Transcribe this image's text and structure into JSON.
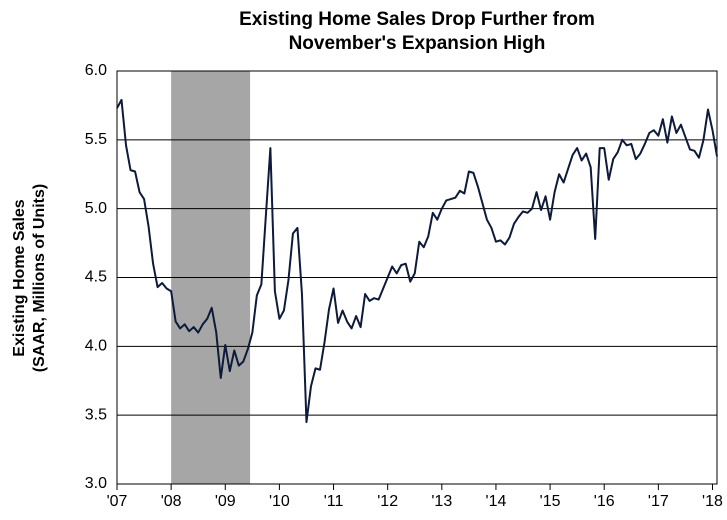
{
  "chart_data": {
    "type": "line",
    "title": [
      "Existing Home Sales Drop Further from",
      "November's Expansion High"
    ],
    "y_label": [
      "Existing Home Sales",
      "(SAAR, Millions of Units)"
    ],
    "categories": [
      "'07",
      null,
      null,
      null,
      null,
      null,
      null,
      null,
      null,
      null,
      null,
      null,
      "'08",
      null,
      null,
      null,
      null,
      null,
      null,
      null,
      null,
      null,
      null,
      null,
      "'09",
      null,
      null,
      null,
      null,
      null,
      null,
      null,
      null,
      null,
      null,
      null,
      "'10",
      null,
      null,
      null,
      null,
      null,
      null,
      null,
      null,
      null,
      null,
      null,
      "'11",
      null,
      null,
      null,
      null,
      null,
      null,
      null,
      null,
      null,
      null,
      null,
      "'12",
      null,
      null,
      null,
      null,
      null,
      null,
      null,
      null,
      null,
      null,
      null,
      "'13",
      null,
      null,
      null,
      null,
      null,
      null,
      null,
      null,
      null,
      null,
      null,
      "'14",
      null,
      null,
      null,
      null,
      null,
      null,
      null,
      null,
      null,
      null,
      null,
      "'15",
      null,
      null,
      null,
      null,
      null,
      null,
      null,
      null,
      null,
      null,
      null,
      "'16",
      null,
      null,
      null,
      null,
      null,
      null,
      null,
      null,
      null,
      null,
      null,
      "'17",
      null,
      null,
      null,
      null,
      null,
      null,
      null,
      null,
      null,
      null,
      null,
      "'18",
      null
    ],
    "series": [
      {
        "name": "Existing Home Sales",
        "color": "#0d1a3a",
        "values": [
          5.73,
          5.79,
          5.46,
          5.28,
          5.27,
          5.12,
          5.07,
          4.87,
          4.6,
          4.43,
          4.46,
          4.42,
          4.4,
          4.18,
          4.13,
          4.16,
          4.11,
          4.14,
          4.1,
          4.16,
          4.2,
          4.28,
          4.1,
          3.77,
          4.01,
          3.82,
          3.97,
          3.86,
          3.89,
          3.98,
          4.1,
          4.37,
          4.45,
          4.95,
          5.44,
          4.4,
          4.2,
          4.26,
          4.48,
          4.82,
          4.86,
          4.38,
          3.45,
          3.71,
          3.84,
          3.83,
          4.03,
          4.27,
          4.42,
          4.17,
          4.26,
          4.18,
          4.13,
          4.22,
          4.14,
          4.38,
          4.33,
          4.35,
          4.34,
          4.42,
          4.5,
          4.58,
          4.53,
          4.59,
          4.6,
          4.47,
          4.53,
          4.76,
          4.72,
          4.8,
          4.97,
          4.92,
          5.0,
          5.06,
          5.07,
          5.08,
          5.13,
          5.11,
          5.27,
          5.26,
          5.16,
          5.04,
          4.92,
          4.86,
          4.76,
          4.77,
          4.74,
          4.79,
          4.89,
          4.94,
          4.98,
          4.97,
          5.0,
          5.12,
          4.99,
          5.09,
          4.92,
          5.12,
          5.25,
          5.19,
          5.29,
          5.39,
          5.44,
          5.35,
          5.4,
          5.3,
          4.78,
          5.44,
          5.44,
          5.21,
          5.36,
          5.41,
          5.5,
          5.46,
          5.47,
          5.36,
          5.4,
          5.47,
          5.55,
          5.57,
          5.53,
          5.65,
          5.48,
          5.67,
          5.55,
          5.61,
          5.52,
          5.43,
          5.42,
          5.37,
          5.5,
          5.72,
          5.57,
          5.38
        ]
      }
    ],
    "shaded_region": {
      "start": 12,
      "end": 29.5,
      "color": "#a6a6a6"
    },
    "ylim": [
      3.0,
      6.0
    ],
    "yticks": [
      {
        "value": 3.0,
        "label": "3.0"
      },
      3.5,
      {
        "value": 4.0,
        "label": "4.0"
      },
      4.5,
      {
        "value": 5.0,
        "label": "5.0"
      },
      5.5,
      {
        "value": 6.0,
        "label": "6.0"
      }
    ],
    "grid": true
  }
}
